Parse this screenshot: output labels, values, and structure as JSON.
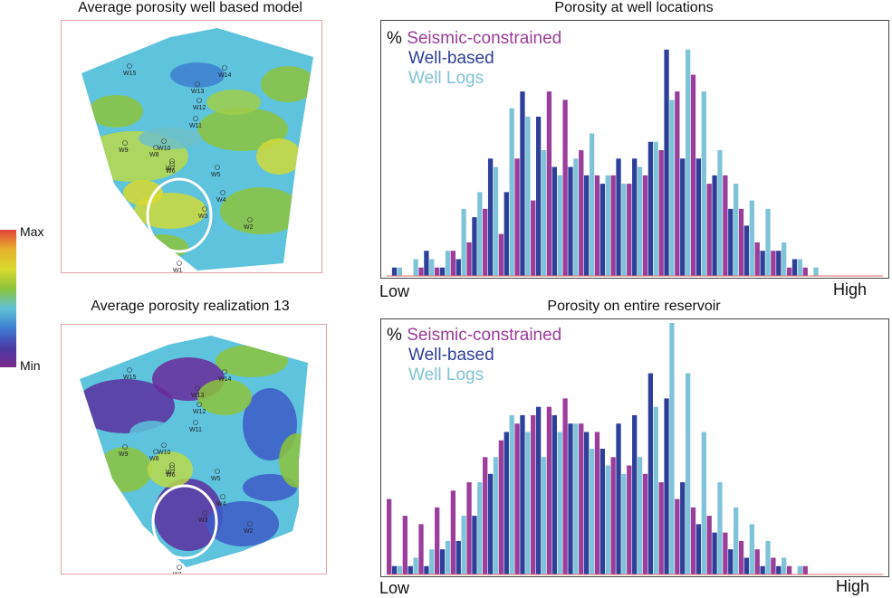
{
  "maps": [
    {
      "title": "Average porosity well based model",
      "variant": "smooth"
    },
    {
      "title": "Average porosity realization 13",
      "variant": "patchy"
    }
  ],
  "wells": [
    "W15",
    "W14",
    "W13",
    "W12",
    "W11",
    "W10",
    "W9",
    "W8",
    "W7",
    "W6",
    "W5",
    "W4",
    "W3",
    "W2",
    "W1"
  ],
  "color_scale": {
    "max_label": "Max",
    "min_label": "Min",
    "colors": [
      "#e0413a",
      "#e6b22e",
      "#d9d92e",
      "#8cc43c",
      "#5fc1d6",
      "#3d7fd0",
      "#4a3aa6",
      "#7a2a8a"
    ]
  },
  "colors": {
    "seismic": "#9b3d9b",
    "well_based": "#2e3f9a",
    "well_logs": "#7fc3d8"
  },
  "legend": {
    "percent": "%",
    "seismic": "Seismic-constrained",
    "well_based": "Well-based",
    "well_logs": "Well Logs"
  },
  "axis": {
    "low": "Low",
    "high": "High"
  },
  "chart_data": [
    {
      "type": "bar",
      "title": "Porosity at well locations",
      "xlabel_low": "Low",
      "xlabel_high": "High",
      "ylim": [
        0,
        30
      ],
      "categories": [
        "1",
        "2",
        "3",
        "4",
        "5",
        "6",
        "7",
        "8",
        "9",
        "10",
        "11",
        "12",
        "13",
        "14",
        "15",
        "16",
        "17",
        "18",
        "19",
        "20",
        "21",
        "22",
        "23",
        "24",
        "25",
        "26",
        "27",
        "28",
        "29",
        "30",
        "31"
      ],
      "series": [
        {
          "name": "Seismic-constrained",
          "values": [
            0,
            0,
            1,
            1,
            3,
            4,
            8,
            5,
            14,
            9,
            22,
            21,
            15,
            12,
            12,
            11,
            12,
            15,
            22,
            24,
            11,
            12,
            8,
            4,
            3,
            1,
            1,
            0,
            0,
            0,
            0
          ]
        },
        {
          "name": "Well-based",
          "values": [
            1,
            0,
            3,
            1,
            2,
            7,
            14,
            10,
            22,
            19,
            13,
            13,
            12,
            11,
            14,
            14,
            16,
            27,
            14,
            14,
            12,
            8,
            6,
            3,
            3,
            2,
            0,
            0,
            0,
            0,
            0
          ]
        },
        {
          "name": "Well Logs",
          "values": [
            1,
            2,
            2,
            3,
            8,
            10,
            13,
            20,
            19,
            15,
            12,
            14,
            17,
            12,
            11,
            13,
            16,
            21,
            27,
            22,
            15,
            11,
            9,
            8,
            4,
            2,
            1,
            0,
            0,
            0,
            0
          ]
        }
      ]
    },
    {
      "type": "bar",
      "title": "Porosity on entire reservoir",
      "xlabel_low": "Low",
      "xlabel_high": "High",
      "ylim": [
        0,
        30
      ],
      "categories": [
        "1",
        "2",
        "3",
        "4",
        "5",
        "6",
        "7",
        "8",
        "9",
        "10",
        "11",
        "12",
        "13",
        "14",
        "15",
        "16",
        "17",
        "18",
        "19",
        "20",
        "21",
        "22",
        "23",
        "24",
        "25",
        "26",
        "27",
        "28",
        "29",
        "30",
        "31"
      ],
      "series": [
        {
          "name": "Seismic-constrained",
          "values": [
            9,
            7,
            6,
            8,
            10,
            11,
            14,
            16,
            18,
            19,
            20,
            21,
            18,
            17,
            14,
            13,
            12,
            11,
            9,
            8,
            7,
            5,
            4,
            3,
            2,
            1,
            1,
            0,
            0,
            0,
            0
          ]
        },
        {
          "name": "Well-based",
          "values": [
            1,
            1,
            1,
            3,
            4,
            7,
            12,
            17,
            19,
            20,
            19,
            18,
            17,
            15,
            18,
            19,
            24,
            21,
            11,
            6,
            5,
            3,
            2,
            1,
            1,
            0,
            0,
            0,
            0,
            0,
            0
          ]
        },
        {
          "name": "Well Logs",
          "values": [
            1,
            2,
            3,
            4,
            7,
            11,
            14,
            19,
            17,
            14,
            17,
            18,
            15,
            13,
            12,
            14,
            20,
            30,
            24,
            17,
            11,
            8,
            6,
            4,
            2,
            1,
            0,
            0,
            0,
            0,
            0
          ]
        }
      ]
    }
  ]
}
